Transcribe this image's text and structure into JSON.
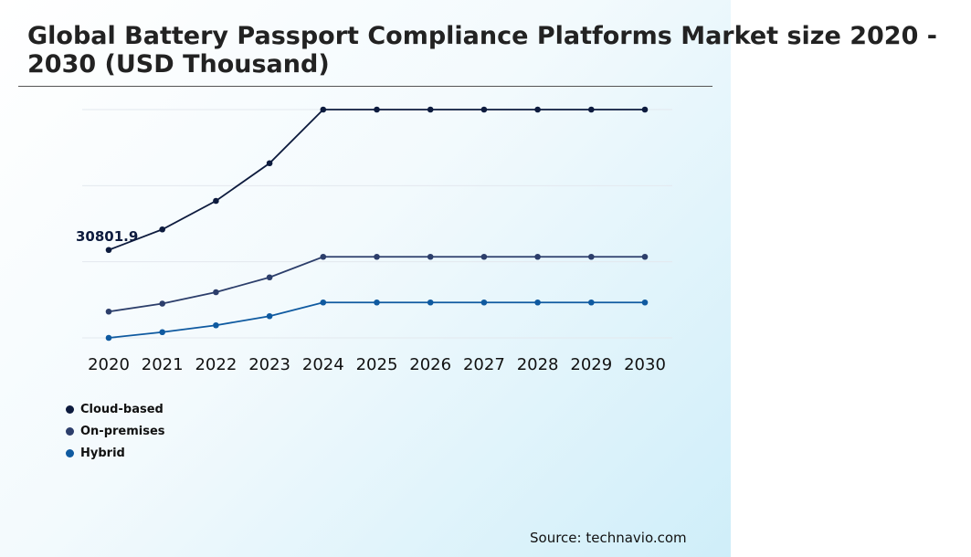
{
  "title": "Global Battery Passport Compliance Platforms Market size 2020 - 2030 (USD Thousand)",
  "source": "Source: technavio.com",
  "colors": {
    "cloud": "#0d1b3e",
    "onprem": "#2c3e6b",
    "hybrid": "#0f5aa0",
    "grid": "#e3e8ee"
  },
  "chart_data": {
    "type": "line",
    "categories": [
      "2020",
      "2021",
      "2022",
      "2023",
      "2024",
      "2025",
      "2026",
      "2027",
      "2028",
      "2029",
      "2030"
    ],
    "ylim": [
      0,
      100
    ],
    "grid": true,
    "legend_placement": "bottom-left",
    "series": [
      {
        "name": "Cloud-based",
        "color": "#0d1b3e",
        "values": [
          38.5,
          47.5,
          60,
          76.5,
          100,
          100,
          100,
          100,
          100,
          100,
          100
        ]
      },
      {
        "name": "On-premises",
        "color": "#2c3e6b",
        "values": [
          11.5,
          15,
          20,
          26.5,
          35.5,
          35.5,
          35.5,
          35.5,
          35.5,
          35.5,
          35.5
        ]
      },
      {
        "name": "Hybrid",
        "color": "#0f5aa0",
        "values": [
          0,
          2.5,
          5.5,
          9.5,
          15.5,
          15.5,
          15.5,
          15.5,
          15.5,
          15.5,
          15.5
        ]
      }
    ],
    "annotations": [
      {
        "series": "Cloud-based",
        "category": "2020",
        "text": "30801.9"
      }
    ]
  }
}
